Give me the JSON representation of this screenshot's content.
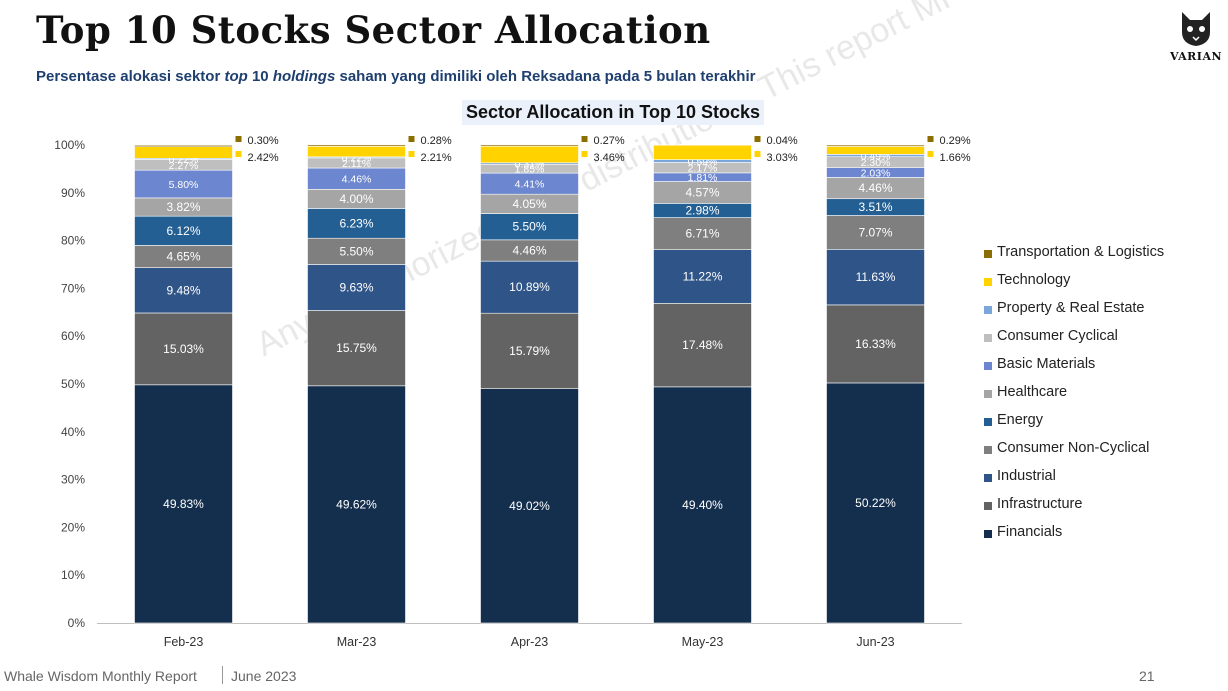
{
  "header": {
    "title": "Top 10 Stocks Sector Allocation",
    "subtitle_parts": [
      "Persentase alokasi sektor ",
      "top",
      " 10 ",
      "holdings",
      " saham yang dimiliki oleh Reksadana pada 5 bulan terakhir"
    ],
    "logo_text": "VARIAN"
  },
  "watermark": "Any unauthorized copy, distribution... This report MPI... modification is prohibited",
  "footer": {
    "report_name": "Whale Wisdom Monthly Report",
    "date": "June 2023",
    "page": "21"
  },
  "chart_data": {
    "type": "bar",
    "stacked": true,
    "title": "Sector Allocation in Top 10 Stocks",
    "categories": [
      "Feb-23",
      "Mar-23",
      "Apr-23",
      "May-23",
      "Jun-23"
    ],
    "y_ticks": [
      "0%",
      "10%",
      "20%",
      "30%",
      "40%",
      "50%",
      "60%",
      "70%",
      "80%",
      "90%",
      "100%"
    ],
    "ylim": [
      0,
      100
    ],
    "legend_position": "right",
    "series": [
      {
        "name": "Financials",
        "color": "#142f4e",
        "values": [
          49.83,
          49.62,
          49.02,
          49.4,
          50.22
        ],
        "labels": [
          "49.83%",
          "49.62%",
          "49.02%",
          "49.40%",
          "50.22%"
        ]
      },
      {
        "name": "Infrastructure",
        "color": "#636363",
        "values": [
          15.03,
          15.75,
          15.79,
          17.48,
          16.33
        ],
        "labels": [
          "15.03%",
          "15.75%",
          "15.79%",
          "17.48%",
          "16.33%"
        ]
      },
      {
        "name": "Industrial",
        "color": "#2f5488",
        "values": [
          9.48,
          9.63,
          10.89,
          11.22,
          11.63
        ],
        "labels": [
          "9.48%",
          "9.63%",
          "10.89%",
          "11.22%",
          "11.63%"
        ]
      },
      {
        "name": "Consumer Non-Cyclical",
        "color": "#7f7f7f",
        "values": [
          4.65,
          5.5,
          4.46,
          6.71,
          7.07
        ],
        "labels": [
          "4.65%",
          "5.50%",
          "4.46%",
          "6.71%",
          "7.07%"
        ]
      },
      {
        "name": "Energy",
        "color": "#235f93",
        "values": [
          6.12,
          6.23,
          5.5,
          2.98,
          3.51
        ],
        "labels": [
          "6.12%",
          "6.23%",
          "5.50%",
          "2.98%",
          "3.51%"
        ]
      },
      {
        "name": "Healthcare",
        "color": "#a5a5a5",
        "values": [
          3.82,
          4.0,
          4.05,
          4.57,
          4.46
        ],
        "labels": [
          "3.82%",
          "4.00%",
          "4.05%",
          "4.57%",
          "4.46%"
        ]
      },
      {
        "name": "Basic Materials",
        "color": "#6c86cf",
        "values": [
          5.8,
          4.46,
          4.41,
          1.81,
          2.03
        ],
        "labels": [
          "5.80%",
          "4.46%",
          "4.41%",
          "1.81%",
          "2.03%"
        ]
      },
      {
        "name": "Consumer Cyclical",
        "color": "#bfbfbf",
        "values": [
          2.27,
          2.11,
          1.85,
          2.17,
          2.3
        ],
        "labels": [
          "2.27%",
          "2.11%",
          "1.85%",
          "2.17%",
          "2.30%"
        ]
      },
      {
        "name": "Property & Real Estate",
        "color": "#7aa6dc",
        "values": [
          0.22,
          0.22,
          0.31,
          0.59,
          0.49
        ],
        "labels": [
          "0.22%",
          "0.22%",
          "0.31%",
          "0.59%",
          "0.49%"
        ]
      },
      {
        "name": "Technology",
        "color": "#ffd200",
        "values": [
          2.42,
          2.21,
          3.46,
          3.03,
          1.66
        ],
        "labels": [
          "2.42%",
          "2.21%",
          "3.46%",
          "3.03%",
          "1.66%"
        ]
      },
      {
        "name": "Transportation & Logistics",
        "color": "#8c6d00",
        "values": [
          0.3,
          0.28,
          0.27,
          0.04,
          0.29
        ],
        "labels": [
          "0.30%",
          "0.28%",
          "0.27%",
          "0.04%",
          "0.29%"
        ]
      }
    ]
  }
}
